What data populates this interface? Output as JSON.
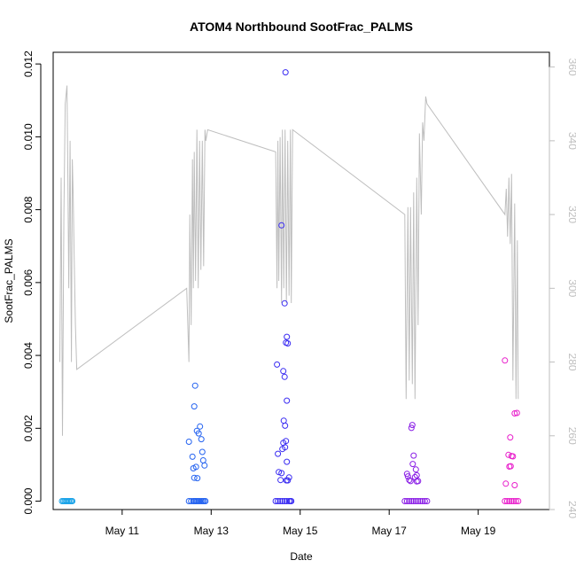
{
  "chart_data": {
    "type": "scatter",
    "title": "ATOM4 Northbound SootFrac_PALMS",
    "xlabel": "Date",
    "ylabel": "SootFrac_PALMS",
    "x_ticks": [
      "May 11",
      "May 13",
      "May 15",
      "May 17",
      "May 19"
    ],
    "x_tick_days": [
      11,
      13,
      15,
      17,
      19
    ],
    "xlim": [
      9.45,
      20.6
    ],
    "y_ticks": [
      0.0,
      0.002,
      0.004,
      0.006,
      0.008,
      0.01,
      0.012
    ],
    "y_tick_labels": [
      "0.000",
      "0.002",
      "0.004",
      "0.006",
      "0.008",
      "0.010",
      "0.012"
    ],
    "ylim": [
      -0.00023,
      0.01232
    ],
    "y2_ticks": [
      240,
      260,
      280,
      300,
      320,
      340,
      360
    ],
    "y2_tick_labels": [
      "240",
      "260",
      "280",
      "300",
      "320",
      "340",
      "360"
    ],
    "y2lim": [
      240,
      364
    ],
    "grid": false,
    "point_colors": {
      "flight1": "#1aa3e8",
      "flight2": "#2563f0",
      "flight3": "#3a2cf2",
      "flight4": "#8a1ee6",
      "flight5": "#e81ecb"
    },
    "line_color": "#bebebe",
    "series": [
      {
        "color_key": "flight1",
        "x": [
          9.65,
          9.68,
          9.71,
          9.74,
          9.77,
          9.8,
          9.83,
          9.86,
          9.88
        ],
        "y": [
          0,
          0,
          0,
          0,
          0,
          0,
          0,
          0,
          0
        ]
      },
      {
        "color_key": "flight2",
        "x": [
          12.5,
          12.55,
          12.6,
          12.62,
          12.65,
          12.68,
          12.71,
          12.74,
          12.78,
          12.81,
          12.84,
          12.87,
          12.5,
          12.58,
          12.62,
          12.68,
          12.72,
          12.75,
          12.78,
          12.8,
          12.82,
          12.85,
          12.6,
          12.66,
          12.64,
          12.69,
          12.62
        ],
        "y": [
          0,
          0,
          0,
          0,
          0,
          0,
          0,
          0,
          0,
          0,
          0,
          0,
          0.00163,
          0.00122,
          0.0026,
          0.00193,
          0.00186,
          0.00205,
          0.0017,
          0.00135,
          0.00112,
          0.00098,
          0.0009,
          0.00094,
          0.00317,
          0.00063,
          0.00064
        ]
      },
      {
        "color_key": "flight3",
        "x": [
          14.45,
          14.5,
          14.55,
          14.6,
          14.65,
          14.7,
          14.75,
          14.78,
          14.8,
          14.67,
          14.58,
          14.65,
          14.48,
          14.68,
          14.72,
          14.7,
          14.62,
          14.65,
          14.7,
          14.63,
          14.66,
          14.68,
          14.62,
          14.66,
          14.6,
          14.5,
          14.7,
          14.52,
          14.58,
          14.75,
          14.69,
          14.72,
          14.56
        ],
        "y": [
          0,
          0,
          0,
          0,
          0,
          0,
          0,
          0,
          0,
          0.01177,
          0.00757,
          0.00543,
          0.00375,
          0.00435,
          0.00433,
          0.00451,
          0.00357,
          0.00341,
          0.00276,
          0.00221,
          0.00207,
          0.00165,
          0.0016,
          0.00148,
          0.00143,
          0.0013,
          0.00108,
          0.0008,
          0.00077,
          0.00065,
          0.00057,
          0.00057,
          0.00058
        ]
      },
      {
        "color_key": "flight4",
        "x": [
          17.35,
          17.4,
          17.45,
          17.5,
          17.55,
          17.6,
          17.65,
          17.7,
          17.75,
          17.8,
          17.85,
          17.52,
          17.5,
          17.55,
          17.53,
          17.6,
          17.62,
          17.65,
          17.58,
          17.62,
          17.4,
          17.42,
          17.45,
          17.48
        ],
        "y": [
          0,
          0,
          0,
          0,
          0,
          0,
          0,
          0,
          0,
          0,
          0,
          0.00209,
          0.00201,
          0.00125,
          0.00102,
          0.00087,
          0.00071,
          0.00055,
          0.00066,
          0.00054,
          0.00075,
          0.00068,
          0.00058,
          0.00055
        ]
      },
      {
        "color_key": "flight5",
        "x": [
          19.6,
          19.65,
          19.7,
          19.75,
          19.8,
          19.85,
          19.9,
          19.6,
          19.82,
          19.87,
          19.72,
          19.68,
          19.75,
          19.7,
          19.73,
          19.78,
          19.82,
          19.62
        ],
        "y": [
          0,
          0,
          0,
          0,
          0,
          0,
          0,
          0.00386,
          0.00241,
          0.00242,
          0.00175,
          0.00127,
          0.00124,
          0.00095,
          0.00096,
          0.00123,
          0.00044,
          0.00048
        ]
      }
    ],
    "right_axis_line": {
      "x": [
        9.6,
        9.63,
        9.66,
        9.69,
        9.72,
        9.76,
        9.78,
        9.8,
        9.83,
        9.86,
        9.88,
        9.9,
        9.92,
        9.95,
        9.98,
        12.45,
        12.5,
        12.52,
        12.55,
        12.58,
        12.6,
        12.62,
        12.65,
        12.68,
        12.71,
        12.74,
        12.77,
        12.8,
        12.83,
        12.86,
        12.88,
        12.92,
        14.45,
        14.48,
        14.5,
        14.52,
        14.55,
        14.58,
        14.6,
        14.63,
        14.66,
        14.69,
        14.72,
        14.75,
        14.78,
        14.8,
        14.83,
        17.35,
        17.38,
        17.42,
        17.45,
        17.48,
        17.52,
        17.55,
        17.58,
        17.62,
        17.65,
        17.68,
        17.72,
        17.75,
        17.78,
        17.82,
        17.85,
        19.6,
        19.63,
        19.66,
        19.69,
        19.72,
        19.75,
        19.78,
        19.82,
        19.85,
        19.88,
        19.9
      ],
      "y": [
        280,
        330,
        260,
        320,
        350,
        355,
        330,
        300,
        340,
        280,
        335,
        325,
        310,
        290,
        278,
        300,
        280,
        320,
        290,
        335,
        300,
        337,
        302,
        343,
        300,
        340,
        305,
        340,
        306,
        343,
        340,
        343,
        337,
        300,
        340,
        302,
        341,
        296,
        343,
        300,
        343,
        296,
        340,
        298,
        343,
        296,
        343,
        320,
        270,
        322,
        275,
        322,
        274,
        326,
        270,
        330,
        290,
        342,
        320,
        345,
        340,
        352,
        350,
        320,
        327,
        314,
        330,
        312,
        331,
        275,
        323,
        270,
        313,
        270
      ]
    }
  }
}
